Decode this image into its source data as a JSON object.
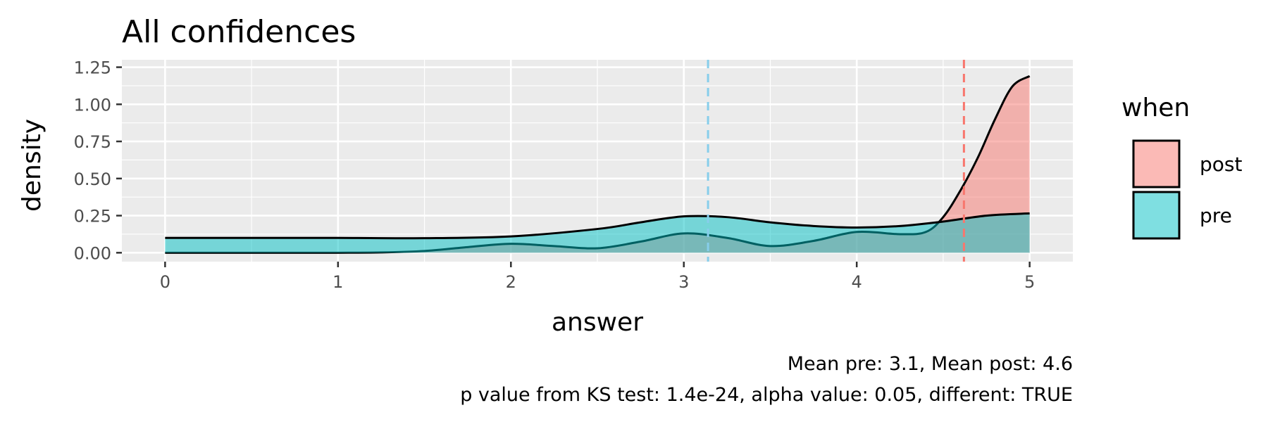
{
  "chart_data": {
    "type": "area",
    "title": "All confidences",
    "xlabel": "answer",
    "ylabel": "density",
    "xlim": [
      -0.25,
      5.25
    ],
    "ylim": [
      -0.06,
      1.3
    ],
    "x_ticks": [
      0,
      1,
      2,
      3,
      4,
      5
    ],
    "x_tick_labels": [
      "0",
      "1",
      "2",
      "3",
      "4",
      "5"
    ],
    "y_ticks": [
      0,
      0.25,
      0.5,
      0.75,
      1.0,
      1.25
    ],
    "y_tick_labels": [
      "0.00",
      "0.25",
      "0.50",
      "0.75",
      "1.00",
      "1.25"
    ],
    "grid": true,
    "legend": {
      "title": "when",
      "position": "right"
    },
    "series": [
      {
        "name": "post",
        "color": "#F8766D",
        "x": [
          0,
          0.5,
          1.0,
          1.25,
          1.5,
          1.75,
          2.0,
          2.25,
          2.5,
          2.75,
          3.0,
          3.25,
          3.5,
          3.75,
          4.0,
          4.25,
          4.4,
          4.5,
          4.6,
          4.7,
          4.8,
          4.9,
          5.0
        ],
        "y": [
          0.0,
          0.0,
          0.0,
          0.002,
          0.012,
          0.038,
          0.06,
          0.045,
          0.03,
          0.075,
          0.13,
          0.1,
          0.045,
          0.08,
          0.14,
          0.125,
          0.14,
          0.24,
          0.42,
          0.64,
          0.9,
          1.12,
          1.19
        ],
        "mean": 4.62
      },
      {
        "name": "pre",
        "color": "#00BFC4",
        "x": [
          0,
          0.5,
          1.0,
          1.5,
          2.0,
          2.5,
          2.75,
          3.0,
          3.25,
          3.5,
          3.75,
          4.0,
          4.25,
          4.5,
          4.75,
          5.0
        ],
        "y": [
          0.1,
          0.1,
          0.1,
          0.098,
          0.11,
          0.16,
          0.205,
          0.245,
          0.24,
          0.205,
          0.18,
          0.17,
          0.18,
          0.21,
          0.25,
          0.265
        ],
        "mean": 3.14
      }
    ],
    "caption_lines": [
      "Mean pre: 3.1, Mean post: 4.6",
      "p value from KS test: 1.4e-24, alpha value: 0.05, different: TRUE"
    ]
  }
}
